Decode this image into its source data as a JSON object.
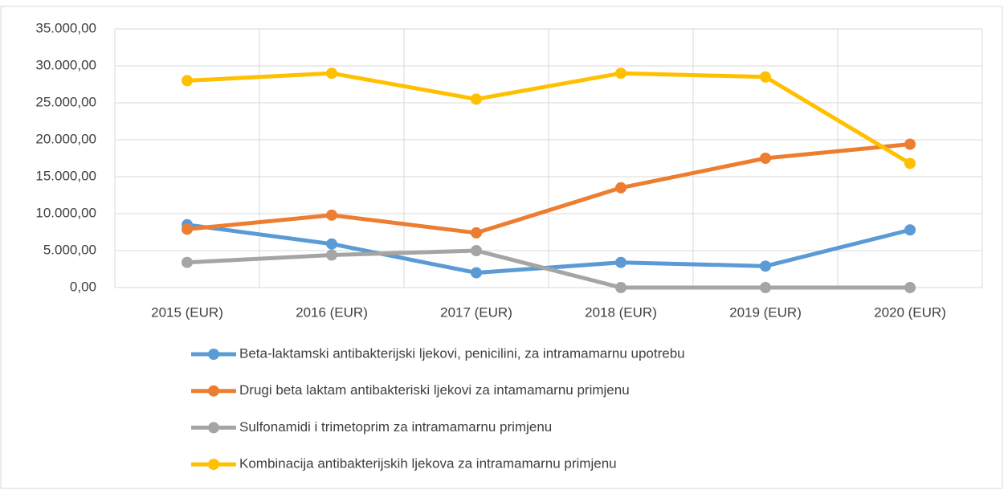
{
  "chart_data": {
    "type": "line",
    "categories": [
      "2015 (EUR)",
      "2016 (EUR)",
      "2017 (EUR)",
      "2018 (EUR)",
      "2019 (EUR)",
      "2020 (EUR)"
    ],
    "series": [
      {
        "name": "Beta-laktamski antibakterijski ljekovi, penicilini, za intramamarnu upotrebu",
        "color": "#5b9bd5",
        "values": [
          8500,
          5900,
          2000,
          3400,
          2900,
          7800
        ]
      },
      {
        "name": "Drugi beta laktam antibakteriski ljekovi za intamamarnu primjenu",
        "color": "#ed7d31",
        "values": [
          7900,
          9800,
          7400,
          13500,
          17500,
          19400
        ]
      },
      {
        "name": "Sulfonamidi i trimetoprim za intramamarnu primjenu",
        "color": "#a5a5a5",
        "values": [
          3400,
          4400,
          5000,
          0,
          0,
          0
        ]
      },
      {
        "name": "Kombinacija antibakterijskih ljekova za intramamarnu primjenu",
        "color": "#ffc000",
        "values": [
          28000,
          29000,
          25500,
          29000,
          28500,
          16800
        ]
      }
    ],
    "ylim": [
      0,
      35000
    ],
    "yticks": [
      {
        "value": 0,
        "label": "0,00"
      },
      {
        "value": 5000,
        "label": "5.000,00"
      },
      {
        "value": 10000,
        "label": "10.000,00"
      },
      {
        "value": 15000,
        "label": "15.000,00"
      },
      {
        "value": 20000,
        "label": "20.000,00"
      },
      {
        "value": 25000,
        "label": "25.000,00"
      },
      {
        "value": 30000,
        "label": "30.000,00"
      },
      {
        "value": 35000,
        "label": "35.000,00"
      }
    ],
    "grid": true,
    "legend": "bottom"
  }
}
